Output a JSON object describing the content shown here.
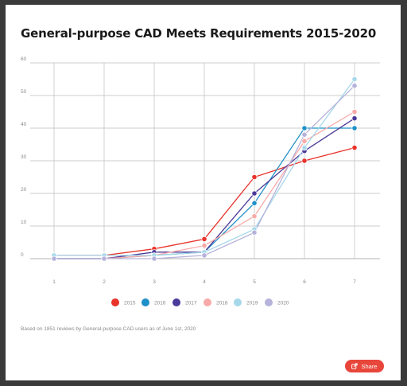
{
  "title": "General-purpose CAD Meets Requirements 2015-2020",
  "footnote": "Based on 1851 reviews by General-purpose CAD users as of June 1st, 2020",
  "share_label": "Share",
  "chart_data": {
    "type": "line",
    "title": "General-purpose CAD Meets Requirements 2015-2020",
    "x": [
      1,
      2,
      3,
      4,
      5,
      6,
      7
    ],
    "ylim": [
      0,
      60
    ],
    "yticks": [
      0,
      10,
      20,
      30,
      40,
      50,
      60
    ],
    "grid": true,
    "legend_position": "bottom",
    "series": [
      {
        "name": "2015",
        "color": "#e8322a",
        "values": [
          1,
          1,
          3,
          6,
          25,
          30,
          34
        ]
      },
      {
        "name": "2016",
        "color": "#1e90c8",
        "values": [
          0,
          0,
          1,
          2,
          17,
          40,
          40
        ]
      },
      {
        "name": "2017",
        "color": "#4b3a9a",
        "values": [
          0,
          0,
          2,
          2,
          20,
          33,
          43
        ]
      },
      {
        "name": "2018",
        "color": "#f7aaa8",
        "values": [
          0,
          0,
          1,
          4,
          13,
          36,
          45
        ]
      },
      {
        "name": "2019",
        "color": "#a6d8ea",
        "values": [
          1,
          1,
          1,
          2,
          9,
          34,
          55
        ]
      },
      {
        "name": "2020",
        "color": "#b5b3db",
        "values": [
          0,
          0,
          0,
          1,
          8,
          38,
          53
        ]
      }
    ]
  }
}
